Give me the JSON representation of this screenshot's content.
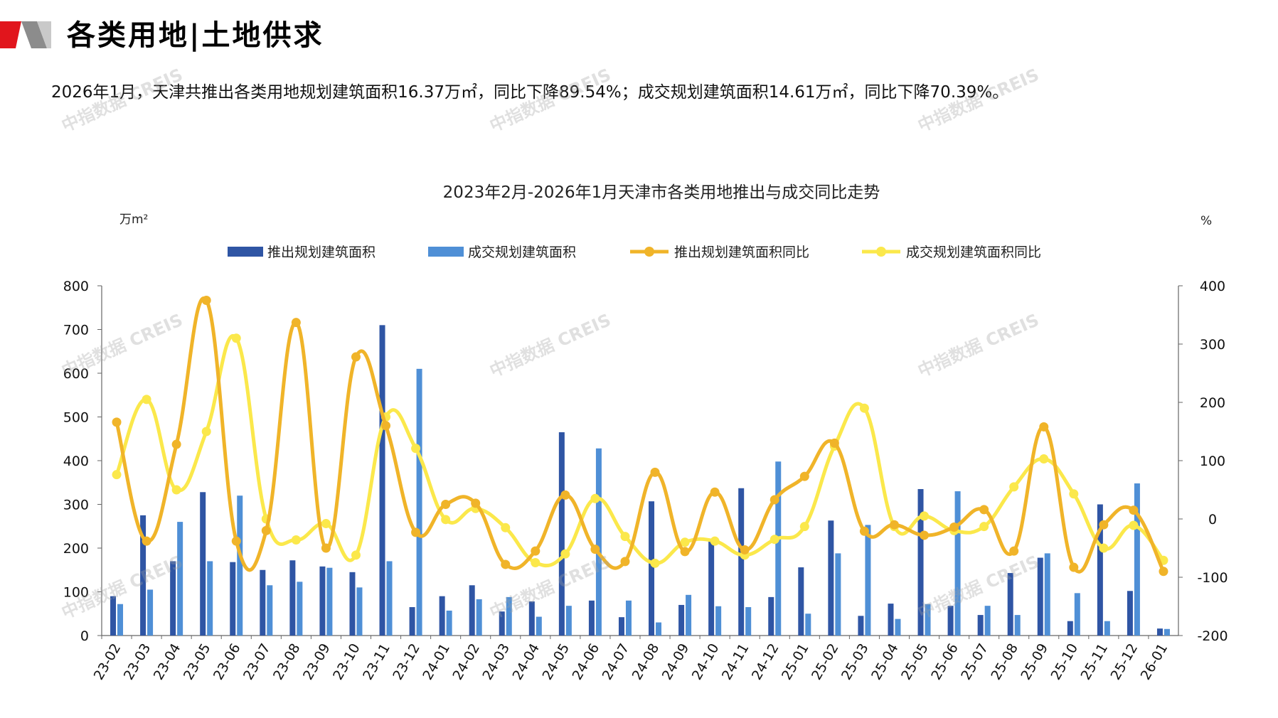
{
  "header": {
    "title": "各类用地|土地供求",
    "logo_colors": [
      "#e1151c",
      "#8c8c8c",
      "#c9c9c9"
    ]
  },
  "summary": "2026年1月，天津共推出各类用地规划建筑面积16.37万㎡，同比下降89.54%；成交规划建筑面积14.61万㎡，同比下降70.39%。",
  "watermark": "中指数据 CREIS",
  "chart_data": {
    "type": "bar",
    "title": "2023年2月-2026年1月天津市各类用地推出与成交同比走势",
    "y_left_unit": "万m²",
    "y_right_unit": "%",
    "ylim_left": [
      0,
      800
    ],
    "ylim_right": [
      -200,
      400
    ],
    "yticks_left": [
      "0",
      "100",
      "200",
      "300",
      "400",
      "500",
      "600",
      "700",
      "800"
    ],
    "yticks_right": [
      "-200",
      "-100",
      "0",
      "100",
      "200",
      "300",
      "400"
    ],
    "grid": false,
    "legend_position": "top",
    "categories": [
      "23-02",
      "23-03",
      "23-04",
      "23-05",
      "23-06",
      "23-07",
      "23-08",
      "23-09",
      "23-10",
      "23-11",
      "23-12",
      "24-01",
      "24-02",
      "24-03",
      "24-04",
      "24-05",
      "24-06",
      "24-07",
      "24-08",
      "24-09",
      "24-10",
      "24-11",
      "24-12",
      "25-01",
      "25-02",
      "25-03",
      "25-04",
      "25-05",
      "25-06",
      "25-07",
      "25-08",
      "25-09",
      "25-10",
      "25-11",
      "25-12",
      "26-01"
    ],
    "series": [
      {
        "name": "推出规划建筑面积",
        "type": "bar",
        "axis": "left",
        "color": "#2f55a4",
        "values": [
          90,
          275,
          170,
          328,
          168,
          150,
          172,
          158,
          145,
          710,
          65,
          90,
          115,
          55,
          78,
          465,
          80,
          42,
          307,
          70,
          215,
          337,
          88,
          156,
          263,
          45,
          73,
          335,
          68,
          47,
          143,
          178,
          33,
          300,
          102,
          16
        ]
      },
      {
        "name": "成交规划建筑面积",
        "type": "bar",
        "axis": "left",
        "color": "#4f8fd6",
        "values": [
          72,
          105,
          260,
          170,
          320,
          115,
          123,
          155,
          110,
          170,
          610,
          57,
          83,
          88,
          43,
          68,
          428,
          80,
          30,
          93,
          67,
          65,
          398,
          50,
          188,
          253,
          38,
          72,
          330,
          68,
          47,
          188,
          97,
          33,
          348,
          15
        ]
      },
      {
        "name": "推出规划建筑面积同比",
        "type": "line",
        "axis": "right",
        "color": "#f0b429",
        "values": [
          166,
          -38,
          128,
          375,
          -38,
          -20,
          337,
          -50,
          278,
          160,
          -23,
          25,
          27,
          -78,
          -55,
          41,
          -52,
          -73,
          80,
          -56,
          46,
          -53,
          33,
          73,
          130,
          -21,
          -10,
          -28,
          -14,
          16,
          -55,
          158,
          -83,
          -10,
          15,
          -90
        ]
      },
      {
        "name": "成交规划建筑面积同比",
        "type": "line",
        "axis": "right",
        "color": "#fbe84b",
        "values": [
          76,
          205,
          50,
          150,
          310,
          0,
          -36,
          -8,
          -62,
          175,
          121,
          -1,
          18,
          -15,
          -75,
          -60,
          35,
          -30,
          -76,
          -40,
          -38,
          -62,
          -35,
          -13,
          125,
          190,
          -13,
          5,
          -20,
          -13,
          55,
          103,
          43,
          -50,
          -11,
          -71
        ]
      }
    ]
  }
}
